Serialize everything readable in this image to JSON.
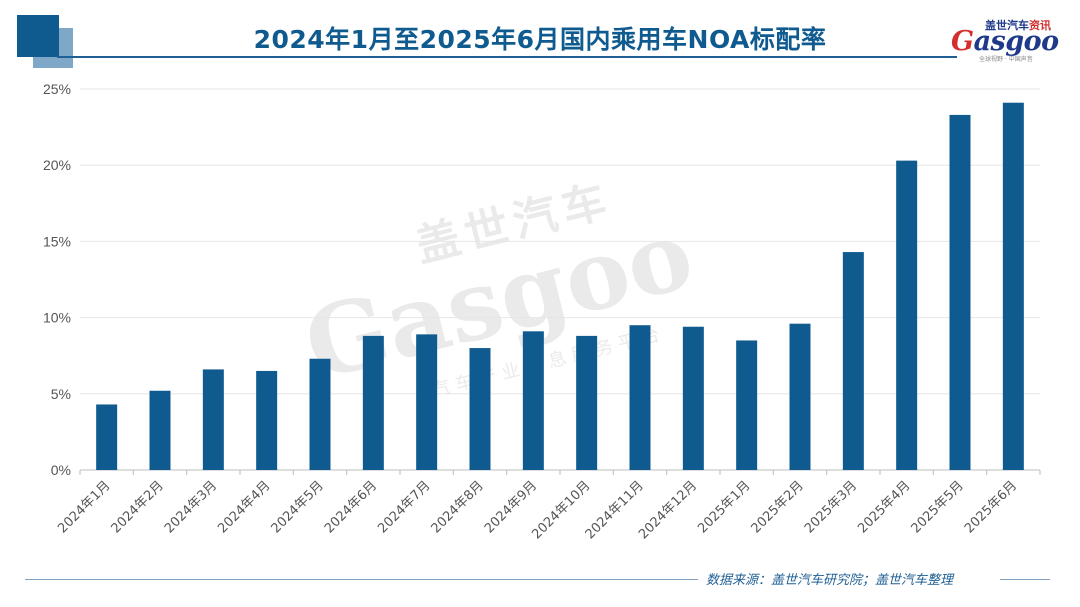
{
  "header": {
    "title": "2024年1月至2025年6月国内乘用车NOA标配率"
  },
  "logo": {
    "cn_prefix": "盖世汽车",
    "cn_suffix": "资讯",
    "en_first": "G",
    "en_rest": "asgoo",
    "sub": "全球视野 · 中国声音"
  },
  "watermark": {
    "cn": "盖世汽车",
    "en": "Gasgoo",
    "sub": "汽车产业信息服务平台"
  },
  "footer": {
    "source": "数据来源：盖世汽车研究院；盖世汽车整理"
  },
  "colors": {
    "bar": "#0f5a8e",
    "accent": "#0f5a8e",
    "grid": "#e6e6e6"
  },
  "chart_data": {
    "type": "bar",
    "title": "2024年1月至2025年6月国内乘用车NOA标配率",
    "xlabel": "",
    "ylabel": "",
    "categories": [
      "2024年1月",
      "2024年2月",
      "2024年3月",
      "2024年4月",
      "2024年5月",
      "2024年6月",
      "2024年7月",
      "2024年8月",
      "2024年9月",
      "2024年10月",
      "2024年11月",
      "2024年12月",
      "2025年1月",
      "2025年2月",
      "2025年3月",
      "2025年4月",
      "2025年5月",
      "2025年6月"
    ],
    "values": [
      4.3,
      5.2,
      6.6,
      6.5,
      7.3,
      8.8,
      8.9,
      8.0,
      9.1,
      8.8,
      9.5,
      9.4,
      8.5,
      9.6,
      14.3,
      20.3,
      23.3,
      24.1
    ],
    "ylim": [
      0,
      25
    ],
    "yticks": [
      0,
      5,
      10,
      15,
      20,
      25
    ],
    "ytick_labels": [
      "0%",
      "5%",
      "10%",
      "15%",
      "20%",
      "25%"
    ],
    "grid": true,
    "legend": "none"
  }
}
